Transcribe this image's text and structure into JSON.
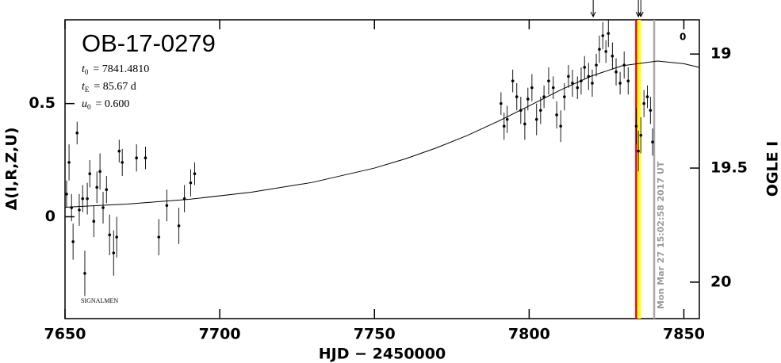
{
  "chart_data": {
    "type": "scatter",
    "title": "OB-17-0279",
    "params": [
      {
        "symbol": "t",
        "subscript": "0",
        "text": "= 7841.4810"
      },
      {
        "symbol": "t",
        "subscript": "E",
        "text": "= 85.67 d"
      },
      {
        "symbol": "u",
        "subscript": "0",
        "text": "= 0.600"
      }
    ],
    "xlabel": "HJD − 2450000",
    "ylabel": "Δ(I,R,Z,U)",
    "y2label": "OGLE I",
    "annotation": "SIGNALMEN",
    "timestamp": "Mon Mar 27 15:02:58 2017 UT",
    "corner_label": "0",
    "xlim": [
      7650,
      7855
    ],
    "ylim": [
      -0.45,
      0.87
    ],
    "y2lim": [
      20.16,
      18.85
    ],
    "xticks": [
      7650,
      7700,
      7750,
      7800,
      7850
    ],
    "yticks": [
      0,
      0.5
    ],
    "y2ticks": [
      19,
      {
        "value": 19.5,
        "label": "19.5"
      },
      20
    ],
    "data": {
      "color": "#000000",
      "x": [
        7650.5,
        7651.3,
        7652.1,
        7652.6,
        7653.9,
        7654.6,
        7655.7,
        7656.4,
        7657.2,
        7658.0,
        7659.3,
        7660.3,
        7661.3,
        7662.3,
        7663.4,
        7664.4,
        7665.7,
        7666.7,
        7667.5,
        7668.5,
        7673.1,
        7676.0,
        7680.3,
        7682.9,
        7686.8,
        7688.6,
        7690.6,
        7691.9,
        7790.9,
        7791.9,
        7792.9,
        7794.7,
        7796.0,
        7797.3,
        7798.6,
        7799.6,
        7800.9,
        7802.4,
        7803.7,
        7804.8,
        7806.3,
        7807.8,
        7808.9,
        7810.2,
        7811.4,
        7812.7,
        7814.0,
        7815.6,
        7816.8,
        7817.9,
        7819.2,
        7820.4,
        7821.7,
        7822.7,
        7823.8,
        7824.8,
        7825.6,
        7826.9,
        7828.1,
        7829.4,
        7830.7,
        7832.0,
        7834.6,
        7835.3,
        7836.1,
        7837.1,
        7838.2,
        7839.2,
        7839.9
      ],
      "values": [
        0.1,
        0.24,
        0.04,
        -0.11,
        0.37,
        0.03,
        0.08,
        -0.25,
        0.08,
        0.19,
        -0.02,
        0.13,
        0.2,
        0.04,
        0.12,
        -0.08,
        -0.16,
        -0.09,
        0.29,
        0.24,
        0.26,
        0.26,
        -0.09,
        0.05,
        -0.04,
        0.08,
        0.15,
        0.19,
        0.5,
        0.4,
        0.43,
        0.6,
        0.53,
        0.47,
        0.41,
        0.52,
        0.57,
        0.43,
        0.47,
        0.53,
        0.6,
        0.57,
        0.45,
        0.4,
        0.53,
        0.62,
        0.59,
        0.57,
        0.6,
        0.66,
        0.62,
        0.59,
        0.67,
        0.74,
        0.8,
        0.73,
        0.81,
        0.71,
        0.64,
        0.59,
        0.67,
        0.6,
        0.4,
        0.29,
        0.36,
        0.5,
        0.53,
        0.47,
        0.33
      ],
      "errors": [
        0.06,
        0.08,
        0.06,
        0.08,
        0.05,
        0.07,
        0.06,
        0.1,
        0.07,
        0.06,
        0.07,
        0.07,
        0.08,
        0.07,
        0.06,
        0.09,
        0.1,
        0.09,
        0.05,
        0.06,
        0.06,
        0.05,
        0.08,
        0.07,
        0.08,
        0.06,
        0.06,
        0.05,
        0.05,
        0.06,
        0.06,
        0.05,
        0.06,
        0.06,
        0.07,
        0.05,
        0.06,
        0.07,
        0.06,
        0.05,
        0.06,
        0.05,
        0.06,
        0.07,
        0.06,
        0.05,
        0.06,
        0.05,
        0.06,
        0.05,
        0.06,
        0.06,
        0.05,
        0.06,
        0.06,
        0.05,
        0.06,
        0.06,
        0.06,
        0.05,
        0.06,
        0.06,
        0.08,
        0.09,
        0.08,
        0.06,
        0.05,
        0.06,
        0.06
      ]
    },
    "model": {
      "color": "#000000",
      "x": [
        7650,
        7670,
        7690,
        7710,
        7730,
        7750,
        7760,
        7770,
        7780,
        7790,
        7800,
        7810,
        7820,
        7830,
        7841.48,
        7850,
        7855
      ],
      "values": [
        0.042,
        0.056,
        0.077,
        0.108,
        0.152,
        0.215,
        0.256,
        0.304,
        0.359,
        0.422,
        0.49,
        0.559,
        0.621,
        0.667,
        0.688,
        0.676,
        0.66
      ]
    },
    "vlines": [
      {
        "x": 7834.6,
        "color": "#ff0000"
      },
      {
        "x": 7835.6,
        "color": "#ffff00"
      },
      {
        "x": 7840.4,
        "color": "#aaaaaa"
      }
    ],
    "arrows": [
      7820.7,
      7835.3,
      7836.1
    ]
  }
}
